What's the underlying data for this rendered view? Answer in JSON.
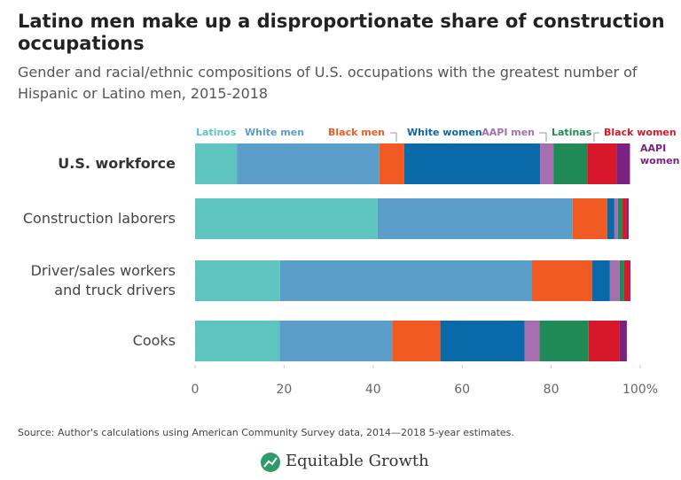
{
  "chart_data": {
    "type": "stacked-bar-horizontal",
    "title": "Latino men make up a disproportionate share of construction occupations",
    "subtitle": "Gender and racial/ethnic compositions of U.S. occupations with the greatest number of Hispanic or Latino men, 2015-2018",
    "categories": [
      "U.S. workforce",
      "Construction laborers",
      "Driver/sales workers\nand truck drivers",
      "Cooks"
    ],
    "series": [
      {
        "name": "Latinos",
        "color": "#5ec4bf",
        "values": [
          9.4,
          41,
          19.1,
          19
        ]
      },
      {
        "name": "White men",
        "color": "#5b9ec9",
        "values": [
          32,
          43.8,
          56.6,
          25.3
        ]
      },
      {
        "name": "Black men",
        "color": "#f15a22",
        "values": [
          5.6,
          7.8,
          13.5,
          10.8
        ]
      },
      {
        "name": "White women",
        "color": "#0a69a8",
        "values": [
          30.5,
          1.6,
          4,
          18.9
        ]
      },
      {
        "name": "AAPI men",
        "color": "#a86fb0",
        "values": [
          3,
          0.8,
          2.2,
          3.4
        ]
      },
      {
        "name": "Latinas",
        "color": "#1f8a55",
        "values": [
          7.6,
          1,
          1,
          11
        ]
      },
      {
        "name": "Black women",
        "color": "#d7182a",
        "values": [
          6.6,
          1,
          1.2,
          7
        ]
      },
      {
        "name": "AAPI women",
        "color": "#7a2280",
        "values": [
          3,
          0.4,
          0.2,
          1.6
        ]
      }
    ],
    "xlim": [
      0,
      100
    ],
    "xticks": [
      0,
      20,
      40,
      60,
      80,
      {
        "value": 100,
        "label": "100%"
      }
    ],
    "source": "Source: Author's calculations using American Community Survey data, 2014—2018 5-year estimates.",
    "brand": "Equitable Growth"
  }
}
